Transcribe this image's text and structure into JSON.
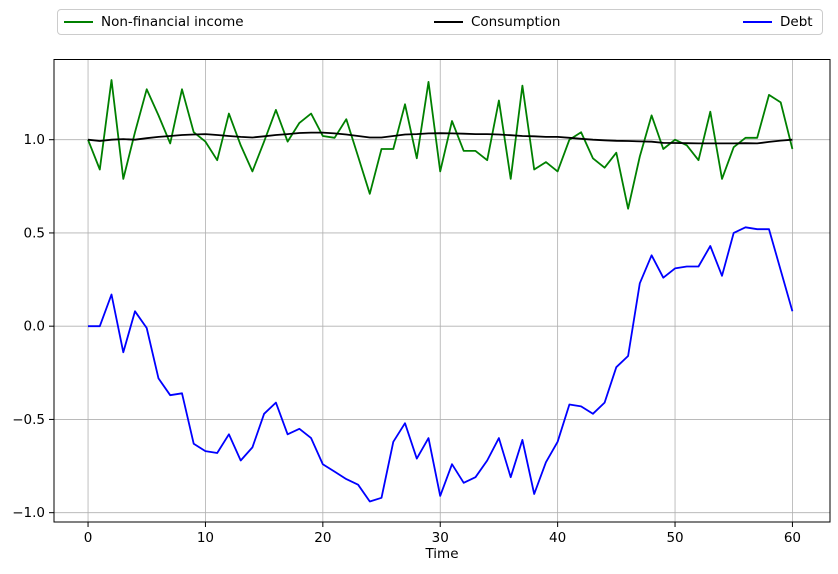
{
  "chart_data": {
    "type": "line",
    "title": "",
    "xlabel": "Time",
    "ylabel": "",
    "grid": true,
    "legend_position": "top-outside-horizontal",
    "axis_color": "#000000",
    "grid_color": "#b0b0b0",
    "background_color": "#ffffff",
    "xlim": [
      -2.9,
      63.2
    ],
    "ylim": [
      -1.05,
      1.43
    ],
    "xticks": [
      0,
      10,
      20,
      30,
      40,
      50,
      60
    ],
    "xtick_labels": [
      "0",
      "10",
      "20",
      "30",
      "40",
      "50",
      "60"
    ],
    "yticks": [
      1.0,
      0.5,
      0.0,
      -0.5,
      -1.0
    ],
    "ytick_labels": [
      "1.0",
      "0.5",
      "0.0",
      "−0.5",
      "−1.0"
    ],
    "x": [
      0,
      1,
      2,
      3,
      4,
      5,
      6,
      7,
      8,
      9,
      10,
      11,
      12,
      13,
      14,
      15,
      16,
      17,
      18,
      19,
      20,
      21,
      22,
      23,
      24,
      25,
      26,
      27,
      28,
      29,
      30,
      31,
      32,
      33,
      34,
      35,
      36,
      37,
      38,
      39,
      40,
      41,
      42,
      43,
      44,
      45,
      46,
      47,
      48,
      49,
      50,
      51,
      52,
      53,
      54,
      55,
      56,
      57,
      58,
      59,
      60
    ],
    "series": [
      {
        "name": "Non-financial income",
        "color": "#008000",
        "values": [
          1.0,
          0.84,
          1.32,
          0.79,
          1.04,
          1.27,
          1.13,
          0.98,
          1.27,
          1.04,
          0.99,
          0.89,
          1.14,
          0.97,
          0.83,
          0.99,
          1.16,
          0.99,
          1.09,
          1.14,
          1.02,
          1.01,
          1.11,
          0.91,
          0.71,
          0.95,
          0.95,
          1.19,
          0.9,
          1.31,
          0.83,
          1.1,
          0.94,
          0.94,
          0.89,
          1.21,
          0.79,
          1.29,
          0.84,
          0.88,
          0.83,
          1.0,
          1.04,
          0.9,
          0.85,
          0.93,
          0.63,
          0.91,
          1.13,
          0.95,
          1.0,
          0.97,
          0.89,
          1.15,
          0.79,
          0.96,
          1.01,
          1.01,
          1.24,
          1.2,
          0.95
        ]
      },
      {
        "name": "Consumption",
        "color": "#000000",
        "values": [
          1.0,
          0.993,
          1.0,
          1.003,
          1.0,
          1.008,
          1.015,
          1.02,
          1.025,
          1.028,
          1.03,
          1.025,
          1.02,
          1.015,
          1.012,
          1.018,
          1.025,
          1.03,
          1.036,
          1.038,
          1.038,
          1.034,
          1.028,
          1.02,
          1.012,
          1.012,
          1.02,
          1.028,
          1.03,
          1.034,
          1.035,
          1.034,
          1.032,
          1.03,
          1.03,
          1.028,
          1.024,
          1.02,
          1.018,
          1.015,
          1.015,
          1.01,
          1.005,
          1.0,
          0.997,
          0.994,
          0.993,
          0.991,
          0.989,
          0.983,
          0.982,
          0.981,
          0.98,
          0.98,
          0.98,
          0.98,
          0.981,
          0.98,
          0.988,
          0.995,
          1.0
        ]
      },
      {
        "name": "Debt",
        "color": "#0000ff",
        "values": [
          0.0,
          0.0,
          0.17,
          -0.14,
          0.08,
          -0.01,
          -0.28,
          -0.37,
          -0.36,
          -0.63,
          -0.67,
          -0.68,
          -0.58,
          -0.72,
          -0.65,
          -0.47,
          -0.41,
          -0.58,
          -0.55,
          -0.6,
          -0.74,
          -0.78,
          -0.82,
          -0.85,
          -0.94,
          -0.92,
          -0.62,
          -0.52,
          -0.71,
          -0.6,
          -0.91,
          -0.74,
          -0.84,
          -0.81,
          -0.72,
          -0.6,
          -0.81,
          -0.61,
          -0.9,
          -0.73,
          -0.62,
          -0.42,
          -0.43,
          -0.47,
          -0.41,
          -0.22,
          -0.16,
          0.23,
          0.38,
          0.26,
          0.31,
          0.32,
          0.32,
          0.43,
          0.27,
          0.5,
          0.53,
          0.52,
          0.52,
          0.3,
          0.08
        ]
      }
    ]
  }
}
